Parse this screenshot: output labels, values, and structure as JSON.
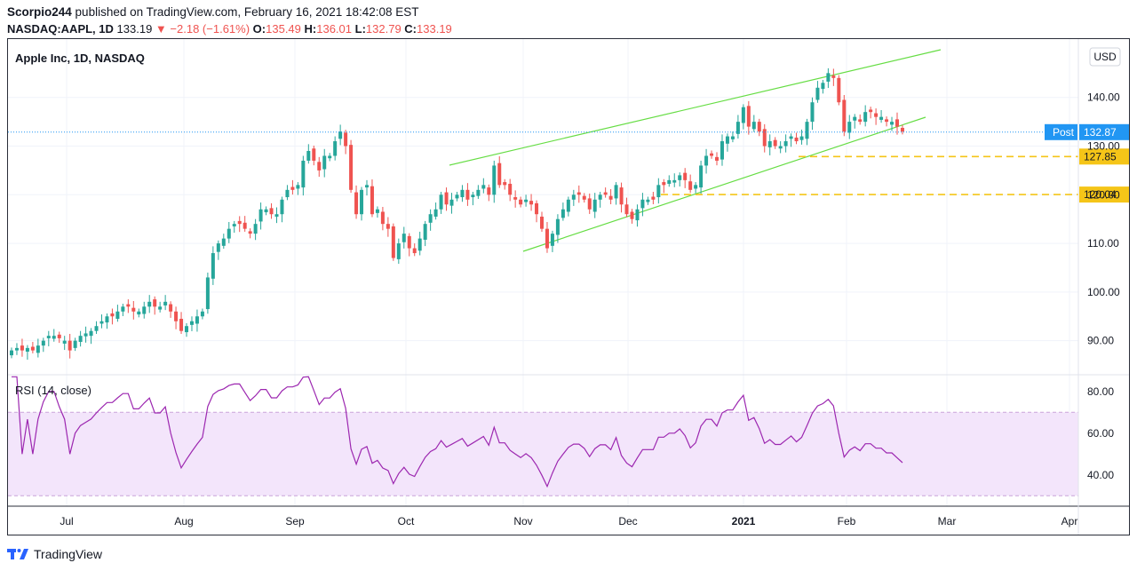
{
  "header": {
    "publisher": "Scorpio244",
    "published_text": "published on TradingView.com, February 16, 2021 18:42:08 EST",
    "symbol": "NASDAQ:AAPL, 1D",
    "last": "133.19",
    "change_arrow": "▼",
    "change": "−2.18 (−1.61%)",
    "o_label": "O:",
    "o_value": "135.49",
    "h_label": "H:",
    "h_value": "136.01",
    "l_label": "L:",
    "l_value": "132.79",
    "c_label": "C:",
    "c_value": "133.19"
  },
  "colors": {
    "up": "#26a69a",
    "down": "#ef5350",
    "channel": "#66dd44",
    "support": "#f5c518",
    "rsi": "#9c27b0",
    "rsi_band": "#f3e5fb",
    "post_badge": "#2196f3"
  },
  "chart_data": {
    "type": "candlestick",
    "title": "Apple Inc, 1D, NASDAQ",
    "currency": "USD",
    "x_ticks": [
      "Jul",
      "Aug",
      "Sep",
      "Oct",
      "Nov",
      "Dec",
      "2021",
      "Feb",
      "Mar",
      "Apr"
    ],
    "y_ticks": [
      "90.00",
      "100.00",
      "110.00",
      "120.00",
      "130.00",
      "140.00"
    ],
    "ylim": [
      83,
      152
    ],
    "grid": true,
    "post_label": "Post",
    "post_value": "132.87",
    "support_levels": [
      {
        "label": "127.85",
        "value": 127.85
      },
      {
        "label": "120.04",
        "value": 120.04
      }
    ],
    "channel": {
      "upper": [
        [
          0,
          126
        ],
        [
          107,
          151
        ]
      ],
      "lower": [
        [
          0,
          107
        ],
        [
          107,
          136
        ]
      ]
    },
    "closes": [
      88,
      88.5,
      88,
      88.5,
      88,
      89,
      90,
      91,
      91,
      90.5,
      90,
      88,
      90,
      91,
      91.5,
      92,
      93,
      94,
      95,
      95,
      96,
      97,
      97,
      96,
      96,
      97,
      98,
      97,
      97,
      98,
      96,
      94,
      92,
      93,
      94,
      95,
      96,
      103,
      108,
      110,
      111,
      113,
      114,
      114,
      113,
      112,
      114,
      117,
      117,
      116,
      116,
      119,
      121,
      121,
      122,
      127,
      129,
      127,
      125,
      128,
      128,
      131,
      133,
      130,
      121,
      116,
      121,
      122,
      116,
      117,
      114,
      113,
      107,
      110,
      112,
      109,
      108,
      111,
      114,
      116,
      117,
      120,
      118,
      119,
      120,
      121,
      119,
      120,
      121,
      122,
      120,
      126,
      122,
      122,
      120,
      119,
      118,
      119,
      118,
      116,
      113,
      109,
      112,
      115,
      117,
      119,
      120,
      120,
      119,
      117,
      119,
      120,
      120,
      119,
      122,
      118,
      116,
      115,
      117,
      119,
      119,
      119,
      122,
      122,
      123,
      123,
      124,
      123,
      121,
      122,
      126,
      128,
      128,
      127,
      131,
      132,
      132,
      135,
      138,
      134,
      135,
      133,
      130,
      131,
      130,
      130,
      131,
      132,
      131,
      132,
      135,
      139,
      142,
      143,
      145,
      144,
      139,
      133,
      135,
      136,
      135,
      137,
      137,
      136,
      136,
      135,
      135,
      134,
      133
    ],
    "rsi": {
      "label": "RSI (14, close)",
      "y_ticks": [
        "40.00",
        "60.00",
        "80.00"
      ],
      "upper": 70,
      "lower": 30,
      "ylim": [
        25,
        88
      ]
    }
  },
  "footer": {
    "brand": "TradingView"
  }
}
